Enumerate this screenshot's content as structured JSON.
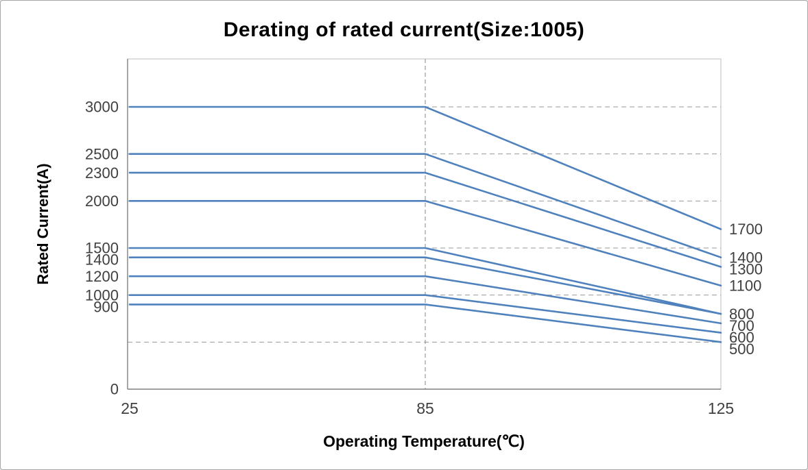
{
  "page": {
    "background": "#ffffff",
    "border_color": "#a6a6a6"
  },
  "chart_data": {
    "type": "line",
    "title": "Derating of rated current(Size:1005)",
    "xlabel": "Operating Temperature(℃)",
    "ylabel": "Rated Current(A)",
    "x": [
      25,
      85,
      125
    ],
    "x_tick_labels": [
      "25",
      "85",
      "125"
    ],
    "y_origin_label": "0",
    "ylim": [
      0,
      3500
    ],
    "y_gridlines": [
      500,
      1000,
      1500,
      2000,
      2500,
      3000
    ],
    "grid_style": "dashed",
    "vertical_guide_at_x": 85,
    "legend": "none",
    "line_color": "#4f81bd",
    "grid_color": "#9a9a9a",
    "axis_color": "#7f7f7f",
    "plot_border_color": "#bdbdbd",
    "tick_color": "#3f3f3f",
    "series": [
      {
        "name": "3000",
        "values": [
          3000,
          3000,
          1700
        ],
        "start_label": "3000",
        "end_label": "1700"
      },
      {
        "name": "2500",
        "values": [
          2500,
          2500,
          1400
        ],
        "start_label": "2500",
        "end_label": "1400"
      },
      {
        "name": "2300",
        "values": [
          2300,
          2300,
          1300
        ],
        "start_label": "2300",
        "end_label": "1300"
      },
      {
        "name": "2000",
        "values": [
          2000,
          2000,
          1100
        ],
        "start_label": "2000",
        "end_label": "1100"
      },
      {
        "name": "1500",
        "values": [
          1500,
          1500,
          800
        ],
        "start_label": "1500",
        "end_label": "800"
      },
      {
        "name": "1400",
        "values": [
          1400,
          1400,
          800
        ],
        "start_label": "1400",
        "end_label": ""
      },
      {
        "name": "1200",
        "values": [
          1200,
          1200,
          700
        ],
        "start_label": "1200",
        "end_label": "700"
      },
      {
        "name": "1000",
        "values": [
          1000,
          1000,
          600
        ],
        "start_label": "1000",
        "end_label": "600"
      },
      {
        "name": "900",
        "values": [
          900,
          900,
          500
        ],
        "start_label": "900",
        "end_label": "500"
      }
    ]
  }
}
